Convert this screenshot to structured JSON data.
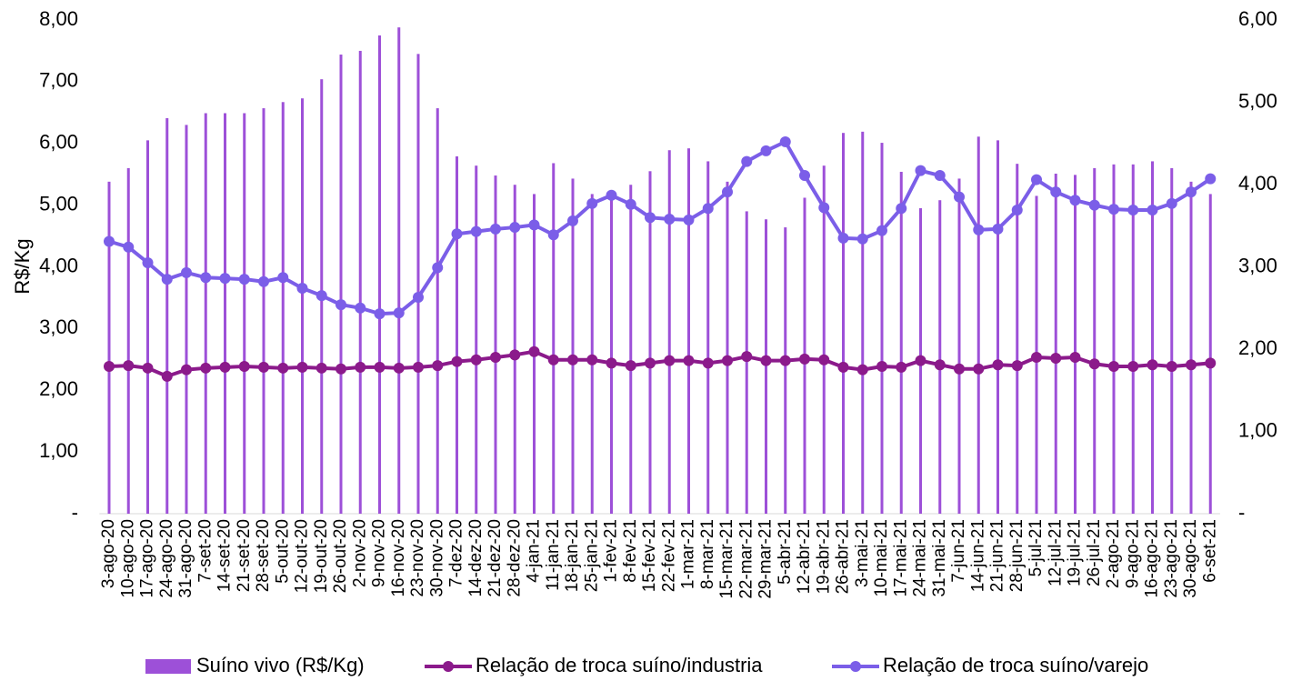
{
  "chart_data": {
    "type": "bar",
    "y_label": "R$/Kg",
    "categories": [
      "3-ago-20",
      "10-ago-20",
      "17-ago-20",
      "24-ago-20",
      "31-ago-20",
      "7-set-20",
      "14-set-20",
      "21-set-20",
      "28-set-20",
      "5-out-20",
      "12-out-20",
      "19-out-20",
      "26-out-20",
      "2-nov-20",
      "9-nov-20",
      "16-nov-20",
      "23-nov-20",
      "30-nov-20",
      "7-dez-20",
      "14-dez-20",
      "21-dez-20",
      "28-dez-20",
      "4-jan-21",
      "11-jan-21",
      "18-jan-21",
      "25-jan-21",
      "1-fev-21",
      "8-fev-21",
      "15-fev-21",
      "22-fev-21",
      "1-mar-21",
      "8-mar-21",
      "15-mar-21",
      "22-mar-21",
      "29-mar-21",
      "5-abr-21",
      "12-abr-21",
      "19-abr-21",
      "26-abr-21",
      "3-mai-21",
      "10-mai-21",
      "17-mai-21",
      "24-mai-21",
      "31-mai-21",
      "7-jun-21",
      "14-jun-21",
      "21-jun-21",
      "28-jun-21",
      "5-jul-21",
      "12-jul-21",
      "19-jul-21",
      "26-jul-21",
      "2-ago-21",
      "9-ago-21",
      "16-ago-21",
      "23-ago-21",
      "30-ago-21",
      "6-set-21"
    ],
    "series": [
      {
        "name": "Suíno vivo (R$/Kg)",
        "type": "bar",
        "color": "#9d50d8",
        "values": [
          5.38,
          5.6,
          6.05,
          6.41,
          6.3,
          6.49,
          6.49,
          6.49,
          6.57,
          6.67,
          6.73,
          7.04,
          7.44,
          7.5,
          7.75,
          7.88,
          7.45,
          6.57,
          5.79,
          5.64,
          5.48,
          5.33,
          5.18,
          5.68,
          5.43,
          5.18,
          5.15,
          5.33,
          5.55,
          5.89,
          5.92,
          5.71,
          5.38,
          4.9,
          4.77,
          4.64,
          5.12,
          5.64,
          6.17,
          6.19,
          6.01,
          5.54,
          4.95,
          5.08,
          5.43,
          6.11,
          6.05,
          5.67,
          5.15,
          5.51,
          5.49,
          5.6,
          5.66,
          5.66,
          5.71,
          5.6,
          5.38,
          5.18
        ]
      },
      {
        "name": "Relação de troca suíno/industria",
        "type": "line",
        "axis": "y2",
        "color": "#8b1a8b",
        "values": [
          1.79,
          1.8,
          1.77,
          1.67,
          1.75,
          1.77,
          1.78,
          1.79,
          1.78,
          1.77,
          1.78,
          1.77,
          1.76,
          1.78,
          1.78,
          1.77,
          1.78,
          1.8,
          1.85,
          1.87,
          1.9,
          1.93,
          1.97,
          1.87,
          1.87,
          1.87,
          1.83,
          1.8,
          1.83,
          1.86,
          1.86,
          1.83,
          1.86,
          1.91,
          1.86,
          1.86,
          1.88,
          1.87,
          1.78,
          1.75,
          1.79,
          1.78,
          1.86,
          1.81,
          1.76,
          1.76,
          1.81,
          1.8,
          1.9,
          1.89,
          1.9,
          1.82,
          1.79,
          1.79,
          1.81,
          1.79,
          1.81,
          1.83
        ]
      },
      {
        "name": "Relação de troca suíno/varejo",
        "type": "line",
        "axis": "y2",
        "color": "#7b5ee8",
        "values": [
          3.31,
          3.24,
          3.05,
          2.85,
          2.93,
          2.87,
          2.86,
          2.85,
          2.82,
          2.87,
          2.74,
          2.65,
          2.54,
          2.5,
          2.43,
          2.44,
          2.63,
          2.99,
          3.4,
          3.43,
          3.46,
          3.48,
          3.51,
          3.39,
          3.56,
          3.77,
          3.87,
          3.76,
          3.6,
          3.58,
          3.57,
          3.71,
          3.91,
          4.28,
          4.41,
          4.52,
          4.11,
          3.72,
          3.35,
          3.34,
          3.44,
          3.71,
          4.17,
          4.11,
          3.85,
          3.45,
          3.46,
          3.69,
          4.06,
          3.91,
          3.81,
          3.75,
          3.7,
          3.69,
          3.69,
          3.77,
          3.91,
          4.07
        ]
      }
    ],
    "ylim": [
      0,
      8
    ],
    "yticks": [
      {
        "value": 0,
        "label": "-"
      },
      {
        "value": 1,
        "label": "1,00"
      },
      {
        "value": 2,
        "label": "2,00"
      },
      {
        "value": 3,
        "label": "3,00"
      },
      {
        "value": 4,
        "label": "4,00"
      },
      {
        "value": 5,
        "label": "5,00"
      },
      {
        "value": 6,
        "label": "6,00"
      },
      {
        "value": 7,
        "label": "7,00"
      },
      {
        "value": 8,
        "label": "8,00"
      }
    ],
    "y2lim": [
      0,
      6
    ],
    "y2ticks": [
      {
        "value": 0,
        "label": "-"
      },
      {
        "value": 1,
        "label": "1,00"
      },
      {
        "value": 2,
        "label": "2,00"
      },
      {
        "value": 3,
        "label": "3,00"
      },
      {
        "value": 4,
        "label": "4,00"
      },
      {
        "value": 5,
        "label": "5,00"
      },
      {
        "value": 6,
        "label": "6,00"
      }
    ],
    "legend": "bottom"
  }
}
